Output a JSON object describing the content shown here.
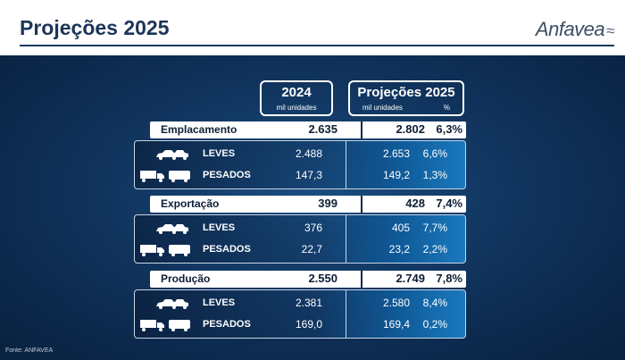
{
  "header": {
    "title": "Projeções 2025",
    "logo_text": "Anfavea",
    "logo_mark": "≈"
  },
  "columns": {
    "c2024": {
      "year": "2024",
      "sub": "mil unidades"
    },
    "c2025": {
      "year": "Projeções 2025",
      "sub": "mil unidades",
      "pct": "%"
    }
  },
  "sections": [
    {
      "label": "Emplacamento",
      "v2024": "2.635",
      "v2025": "2.802",
      "pct": "6,3%",
      "rows": [
        {
          "label": "LEVES",
          "v2024": "2.488",
          "v2025": "2.653",
          "pct": "6,6%",
          "icon": "car-icon"
        },
        {
          "label": "PESADOS",
          "v2024": "147,3",
          "v2025": "149,2",
          "pct": "1,3%",
          "icon": "truck-bus-icon"
        }
      ]
    },
    {
      "label": "Exportação",
      "v2024": "399",
      "v2025": "428",
      "pct": "7,4%",
      "rows": [
        {
          "label": "LEVES",
          "v2024": "376",
          "v2025": "405",
          "pct": "7,7%",
          "icon": "car-icon"
        },
        {
          "label": "PESADOS",
          "v2024": "22,7",
          "v2025": "23,2",
          "pct": "2,2%",
          "icon": "truck-bus-icon"
        }
      ]
    },
    {
      "label": "Produção",
      "v2024": "2.550",
      "v2025": "2.749",
      "pct": "7,8%",
      "rows": [
        {
          "label": "LEVES",
          "v2024": "2.381",
          "v2025": "2.580",
          "pct": "8,4%",
          "icon": "car-icon"
        },
        {
          "label": "PESADOS",
          "v2024": "169,0",
          "v2025": "169,4",
          "pct": "0,2%",
          "icon": "truck-bus-icon"
        }
      ]
    }
  ],
  "footnote": "Fonte: ANFAVEA"
}
